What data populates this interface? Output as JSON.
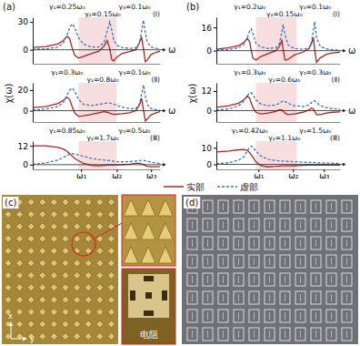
{
  "chart_data": [
    {
      "type": "line",
      "title": "(a)",
      "annotations": [
        "γ₁=0.25ω₀",
        "γ₂=0.15ω₀",
        "γ₃=0.1ω₀",
        "(Ⅰ)"
      ],
      "x_label": "ω",
      "xlim": [
        0,
        10
      ],
      "ylim": [
        -15,
        35
      ],
      "yticks": [
        0,
        30
      ],
      "tick_labels": "y",
      "highlight_range": [
        3.6,
        6.6
      ],
      "x": [
        0,
        1,
        2,
        2.4,
        2.7,
        2.9,
        3.1,
        3.3,
        3.6,
        4.0,
        4.6,
        5.2,
        5.6,
        5.85,
        6.05,
        6.2,
        6.35,
        6.6,
        7.0,
        7.6,
        8.1,
        8.4,
        8.55,
        8.7,
        8.85,
        9.0,
        9.3,
        9.7,
        10
      ],
      "series": [
        {
          "color": "#b22222",
          "line_style": "solid",
          "values": [
            2.5,
            3.5,
            6.5,
            10,
            14.5,
            12,
            2,
            -6,
            -9,
            -7,
            -4,
            -1.5,
            4,
            10,
            1,
            -10,
            -12,
            -8,
            -4,
            -2,
            0,
            8,
            14,
            1,
            -13,
            -11,
            -5,
            -2.5,
            -1.5
          ]
        },
        {
          "color": "#3b73c4",
          "line_style": "dashed",
          "values": [
            0.5,
            1,
            3,
            7,
            16,
            24,
            28,
            24,
            13,
            6,
            3,
            3,
            8,
            20,
            30,
            22,
            11,
            5,
            2.5,
            1.5,
            2,
            8,
            20,
            32,
            18,
            8,
            3,
            1.5,
            1
          ]
        }
      ]
    },
    {
      "type": "line",
      "annotations": [
        "γ₁=0.3ω₀",
        "γ₂=0.8ω₀",
        "γ₃=0.1ω₀",
        "(Ⅱ)"
      ],
      "x_label": "ω",
      "y_label": "χ(ω)",
      "xlim": [
        0,
        10
      ],
      "ylim": [
        -11,
        27
      ],
      "yticks": [
        0,
        20
      ],
      "tick_labels": "y",
      "highlight_range": [
        3.6,
        6.6
      ],
      "x": [
        0,
        1,
        2,
        2.4,
        2.7,
        2.9,
        3.1,
        3.3,
        3.6,
        4.0,
        4.6,
        5.2,
        5.6,
        5.85,
        6.05,
        6.2,
        6.35,
        6.6,
        7.0,
        7.6,
        8.1,
        8.4,
        8.55,
        8.7,
        8.85,
        9.0,
        9.3,
        9.7,
        10
      ],
      "series": [
        {
          "color": "#b22222",
          "line_style": "solid",
          "values": [
            3,
            4,
            7,
            10,
            13,
            11,
            4,
            -2,
            -5.5,
            -5,
            -3.5,
            -2,
            -1,
            -1.5,
            -2.5,
            -3,
            -3.5,
            -3.5,
            -3,
            -2,
            0,
            6,
            12,
            1,
            -10,
            -8,
            -4,
            -2,
            -1
          ]
        },
        {
          "color": "#3b73c4",
          "line_style": "dashed",
          "values": [
            0.5,
            1.5,
            4,
            8,
            15,
            20,
            22,
            19,
            11,
            6,
            5,
            6,
            7,
            7.5,
            7.5,
            7,
            6.5,
            5,
            3.5,
            2,
            2,
            7,
            16,
            25,
            14,
            6,
            2,
            1,
            0.5
          ]
        }
      ]
    },
    {
      "type": "line",
      "annotations": [
        "γ₁=0.85ω₀",
        "γ₂=1.7ω₀",
        "γ₃=0.5ω₀",
        "(Ⅲ)"
      ],
      "xlim": [
        0,
        10
      ],
      "ylim": [
        -3,
        15
      ],
      "yticks": [
        0,
        12
      ],
      "highlight_range": [
        3.6,
        6.6
      ],
      "xticks": [
        {
          "value": 3.8,
          "label": "ω₁"
        },
        {
          "value": 6.6,
          "label": "ω₂"
        },
        {
          "value": 9.3,
          "label": "ω₃"
        }
      ],
      "x": [
        0,
        1,
        2,
        2.4,
        2.7,
        2.9,
        3.1,
        3.3,
        3.6,
        4.0,
        4.6,
        5.2,
        5.6,
        5.85,
        6.05,
        6.2,
        6.35,
        6.6,
        7.0,
        7.6,
        8.1,
        8.4,
        8.55,
        8.7,
        8.85,
        9.0,
        9.3,
        9.7,
        10
      ],
      "series": [
        {
          "color": "#b22222",
          "line_style": "solid",
          "values": [
            12,
            12,
            11,
            10,
            8.5,
            7,
            5.5,
            4,
            2.5,
            0.8,
            -0.5,
            -0.8,
            -0.5,
            -0.3,
            -0.2,
            -0.2,
            -0.2,
            -0.2,
            0,
            0.3,
            0.8,
            0.8,
            0.5,
            0,
            -0.6,
            -1,
            -1.3,
            -1.3,
            -1.2
          ]
        },
        {
          "color": "#3b73c4",
          "line_style": "dashed",
          "values": [
            0.3,
            1,
            3,
            4.5,
            6,
            6.8,
            7,
            6.8,
            6.2,
            5.2,
            4,
            3.3,
            3,
            2.8,
            2.6,
            2.4,
            2.2,
            2,
            1.8,
            1.9,
            2.3,
            2.6,
            2.7,
            2.7,
            2.5,
            2.2,
            1.6,
            1,
            0.7
          ]
        }
      ]
    },
    {
      "type": "line",
      "title": "(b)",
      "annotations": [
        "γ₁=0.2ω₀",
        "γ₂=0.15ω₀",
        "γ₃=0.1ω₀",
        "(Ⅰ)"
      ],
      "x_label": "ω",
      "xlim": [
        0,
        10
      ],
      "ylim": [
        -9,
        23
      ],
      "yticks": [
        0,
        16
      ],
      "tick_labels": "y",
      "highlight_range": [
        3.2,
        6.5
      ],
      "x": [
        0,
        1,
        1.8,
        2.2,
        2.5,
        2.7,
        2.8,
        2.95,
        3.2,
        3.6,
        4.2,
        4.8,
        5.1,
        5.3,
        5.4,
        5.55,
        5.8,
        6.3,
        7.0,
        7.5,
        7.7,
        7.85,
        7.95,
        8.1,
        8.4,
        8.9,
        9.4,
        10
      ],
      "series": [
        {
          "color": "#b22222",
          "line_style": "solid",
          "values": [
            1,
            2,
            3.5,
            5.5,
            8.5,
            6,
            1,
            -5,
            -6.5,
            -4,
            -2,
            0,
            3,
            7,
            1,
            -6.5,
            -6,
            -3,
            -1,
            1.5,
            5,
            9,
            1,
            -8,
            -5,
            -2.5,
            -1.5,
            -1
          ]
        },
        {
          "color": "#3b73c4",
          "line_style": "dashed",
          "values": [
            0.3,
            0.8,
            2,
            4,
            9,
            14,
            15,
            12,
            5,
            2.5,
            1.5,
            2,
            5,
            13,
            18,
            11,
            4,
            1.5,
            1,
            2,
            6,
            14,
            20,
            9,
            3,
            1.2,
            0.6,
            0.4
          ]
        }
      ]
    },
    {
      "type": "line",
      "annotations": [
        "γ₁=0.3ω₀",
        "γ₂=0.6ω₀",
        "γ₃=0.3ω₀",
        "(Ⅱ)"
      ],
      "x_label": "ω",
      "y_label": "χ(ω)",
      "xlim": [
        0,
        10
      ],
      "ylim": [
        -7,
        17
      ],
      "yticks": [
        0,
        12
      ],
      "tick_labels": "y",
      "highlight_range": [
        3.2,
        6.5
      ],
      "x": [
        0,
        1,
        1.8,
        2.2,
        2.5,
        2.7,
        2.8,
        2.95,
        3.2,
        3.6,
        4.2,
        4.8,
        5.1,
        5.3,
        5.4,
        5.55,
        5.8,
        6.3,
        7.0,
        7.5,
        7.7,
        7.85,
        7.95,
        8.1,
        8.4,
        8.9,
        9.4,
        10
      ],
      "series": [
        {
          "color": "#b22222",
          "line_style": "solid",
          "values": [
            2,
            3,
            4.5,
            6.5,
            9,
            7.5,
            5,
            2,
            -1,
            -2,
            -1.5,
            -0.5,
            0.5,
            0.5,
            -0.5,
            -1.5,
            -2.5,
            -2,
            -1,
            0.5,
            1.5,
            1,
            -0.5,
            -2.5,
            -2.5,
            -1.5,
            -1,
            -0.8
          ]
        },
        {
          "color": "#3b73c4",
          "line_style": "dashed",
          "values": [
            0.3,
            1,
            3,
            5.5,
            9,
            11,
            11,
            10,
            6.5,
            4,
            3,
            3.5,
            4.5,
            5.5,
            6,
            5.5,
            4.5,
            3,
            2.5,
            3.5,
            5,
            6,
            6,
            5,
            3,
            1.8,
            1.2,
            0.8
          ]
        }
      ]
    },
    {
      "type": "line",
      "annotations": [
        "γ₁=0.42ω₀",
        "γ₂=1.1ω₀",
        "γ₃=1.5ω₀",
        "(Ⅲ)"
      ],
      "xlim": [
        0,
        10
      ],
      "ylim": [
        -3,
        14
      ],
      "yticks": [
        0,
        10
      ],
      "highlight_range": [
        3.2,
        6.5
      ],
      "xticks": [
        {
          "value": 3.4,
          "label": "ω₁"
        },
        {
          "value": 6.2,
          "label": "ω₂"
        },
        {
          "value": 8.7,
          "label": "ω₃"
        }
      ],
      "x": [
        0,
        1,
        1.8,
        2.2,
        2.5,
        2.7,
        2.8,
        2.95,
        3.2,
        3.6,
        4.2,
        4.8,
        5.1,
        5.3,
        5.4,
        5.55,
        5.8,
        6.3,
        7.0,
        7.5,
        7.7,
        7.85,
        7.95,
        8.1,
        8.4,
        8.9,
        9.4,
        10
      ],
      "series": [
        {
          "color": "#b22222",
          "line_style": "solid",
          "values": [
            7.5,
            8,
            8.8,
            9,
            8.5,
            7,
            6,
            4.5,
            1.5,
            -0.8,
            -1.5,
            -1.2,
            -1,
            -0.9,
            -0.9,
            -0.9,
            -0.9,
            -0.8,
            -0.6,
            -0.5,
            -0.5,
            -0.5,
            -0.5,
            -0.5,
            -0.5,
            -0.5,
            -0.5,
            -0.5
          ]
        },
        {
          "color": "#3b73c4",
          "line_style": "dashed",
          "values": [
            0.3,
            1,
            2.5,
            4.5,
            8,
            10.5,
            11,
            10.5,
            8,
            5,
            3,
            2.3,
            2.1,
            2,
            2,
            1.9,
            1.8,
            1.6,
            1.3,
            1.2,
            1.1,
            1.1,
            1,
            1,
            0.9,
            0.8,
            0.7,
            0.6
          ]
        }
      ]
    }
  ],
  "legend_entries": [
    {
      "name": "实部",
      "color": "#b22222",
      "line_style": "solid"
    },
    {
      "name": "虚部",
      "color": "#3b73c4",
      "line_style": "dashed"
    }
  ],
  "images": [
    {
      "label": "(c)",
      "axis_labels": [
        "x",
        "y"
      ],
      "callout": "电阻"
    },
    {
      "label": "(d)"
    }
  ]
}
